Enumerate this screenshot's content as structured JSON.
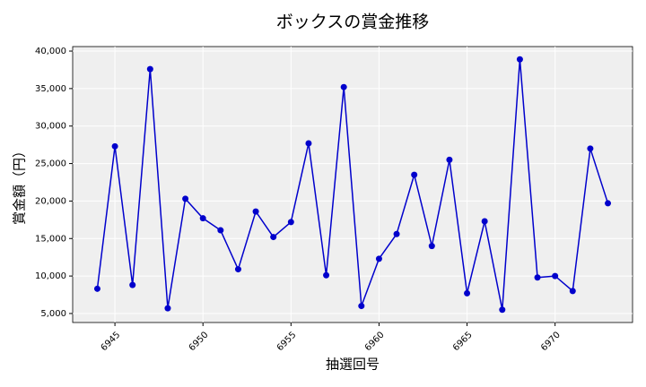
{
  "chart_data": {
    "type": "line",
    "title": "ボックスの賞金推移",
    "xlabel": "抽選回号",
    "ylabel": "賞金額（円）",
    "x": [
      6944,
      6945,
      6946,
      6947,
      6948,
      6949,
      6950,
      6951,
      6952,
      6953,
      6954,
      6955,
      6956,
      6957,
      6958,
      6959,
      6960,
      6961,
      6962,
      6963,
      6964,
      6965,
      6966,
      6967,
      6968,
      6969,
      6970,
      6971,
      6972,
      6973
    ],
    "series": [
      {
        "name": "賞金額",
        "color": "#0000cc",
        "values": [
          8300,
          27300,
          8800,
          37600,
          5700,
          20300,
          17700,
          16100,
          10900,
          18600,
          15200,
          17200,
          27700,
          10100,
          35200,
          6000,
          12300,
          15600,
          23500,
          14000,
          25500,
          7700,
          17300,
          5500,
          38900,
          9800,
          10000,
          8000,
          27000,
          19700
        ]
      }
    ],
    "xlim": [
      6942.6,
      6974.4
    ],
    "xticks": [
      6945,
      6950,
      6955,
      6960,
      6965,
      6970
    ],
    "ylim": [
      3800,
      40600
    ],
    "yticks": [
      {
        "value": 5000,
        "label": "5,000"
      },
      {
        "value": 10000,
        "label": "10,000"
      },
      {
        "value": 15000,
        "label": "15,000"
      },
      {
        "value": 20000,
        "label": "20,000"
      },
      {
        "value": 25000,
        "label": "25,000"
      },
      {
        "value": 30000,
        "label": "30,000"
      },
      {
        "value": 35000,
        "label": "35,000"
      },
      {
        "value": 40000,
        "label": "40,000"
      }
    ],
    "grid": true,
    "background": "#efefef"
  }
}
